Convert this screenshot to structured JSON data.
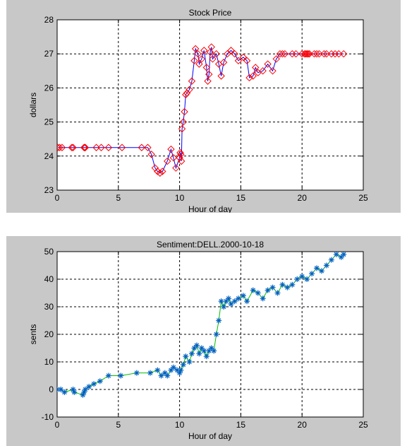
{
  "chart_data": [
    {
      "type": "line",
      "title": "Stock Price",
      "xlabel": "Hour of day",
      "ylabel": "dollars",
      "xlim": [
        0,
        25
      ],
      "ylim": [
        23,
        28
      ],
      "xticks": [
        0,
        5,
        10,
        15,
        20,
        25
      ],
      "yticks": [
        23,
        24,
        25,
        26,
        27,
        28
      ],
      "grid": true,
      "line_color": "#0000ff",
      "marker": "diamond",
      "marker_color": "#ff0000",
      "x": [
        0.05,
        0.2,
        0.4,
        1.2,
        1.3,
        2.2,
        2.25,
        2.3,
        3.2,
        3.6,
        4.2,
        5.3,
        6.9,
        7.4,
        7.7,
        8.0,
        8.2,
        8.4,
        8.6,
        9.0,
        9.3,
        9.5,
        9.7,
        10.0,
        10.05,
        10.1,
        10.15,
        10.2,
        10.3,
        10.4,
        10.5,
        10.6,
        10.8,
        11.0,
        11.2,
        11.3,
        11.5,
        11.6,
        11.8,
        12.0,
        12.2,
        12.3,
        12.4,
        12.5,
        12.6,
        12.7,
        13.0,
        13.2,
        13.4,
        13.6,
        13.9,
        14.2,
        14.5,
        14.8,
        15.2,
        15.5,
        15.7,
        16.0,
        16.2,
        16.4,
        16.8,
        17.2,
        17.6,
        17.9,
        18.2,
        18.4,
        18.6,
        19.2,
        19.5,
        20.0,
        20.2,
        20.3,
        20.4,
        20.5,
        20.6,
        21.0,
        21.2,
        21.4,
        21.8,
        22.0,
        22.4,
        22.7,
        23.0,
        23.4
      ],
      "y": [
        24.25,
        24.25,
        24.25,
        24.25,
        24.25,
        24.25,
        24.25,
        24.25,
        24.25,
        24.25,
        24.25,
        24.25,
        24.25,
        24.25,
        24.05,
        23.65,
        23.55,
        23.5,
        23.55,
        23.85,
        24.2,
        23.95,
        23.65,
        23.95,
        24.1,
        24.05,
        23.85,
        24.8,
        25.0,
        25.3,
        25.8,
        25.85,
        25.95,
        26.2,
        26.8,
        27.15,
        27.0,
        26.7,
        26.85,
        27.1,
        26.6,
        26.2,
        26.4,
        27.05,
        27.2,
        26.85,
        27.0,
        26.7,
        26.35,
        26.75,
        27.0,
        27.1,
        27.0,
        26.8,
        26.9,
        26.8,
        26.3,
        26.35,
        26.6,
        26.45,
        26.5,
        26.7,
        26.5,
        26.85,
        27.0,
        27.0,
        27.0,
        27.0,
        27.0,
        27.0,
        27.0,
        27.0,
        27.0,
        27.0,
        27.0,
        27.0,
        27.0,
        27.0,
        27.0,
        27.0,
        27.0,
        27.0,
        27.0,
        27.0
      ]
    },
    {
      "type": "line",
      "title": "Sentiment:DELL.2000-10-18",
      "xlabel": "Hour of day",
      "ylabel": "sents",
      "xlim": [
        0,
        25
      ],
      "ylim": [
        -10,
        50
      ],
      "xticks": [
        0,
        5,
        10,
        15,
        20,
        25
      ],
      "yticks": [
        -10,
        0,
        10,
        20,
        30,
        40,
        50
      ],
      "grid": true,
      "line_color": "#00c000",
      "marker": "asterisk",
      "marker_color": "#0060c0",
      "x": [
        0.0,
        0.3,
        0.6,
        1.3,
        1.4,
        2.1,
        2.2,
        2.3,
        2.6,
        3.0,
        3.5,
        4.2,
        5.2,
        6.5,
        7.6,
        8.2,
        8.5,
        8.8,
        9.0,
        9.3,
        9.5,
        9.8,
        10.0,
        10.1,
        10.3,
        10.5,
        10.8,
        11.0,
        11.2,
        11.4,
        11.6,
        11.8,
        12.0,
        12.2,
        12.4,
        12.6,
        12.8,
        13.0,
        13.2,
        13.4,
        13.6,
        13.8,
        14.0,
        14.2,
        14.5,
        14.8,
        15.2,
        15.5,
        16.0,
        16.4,
        16.8,
        17.2,
        17.6,
        18.0,
        18.4,
        18.8,
        19.2,
        19.6,
        20.0,
        20.4,
        20.8,
        21.2,
        21.6,
        22.0,
        22.4,
        22.8,
        23.2,
        23.4
      ],
      "y": [
        0,
        0,
        -1,
        0,
        -1,
        -2,
        -1,
        0,
        1,
        2,
        3,
        5,
        5,
        6,
        6,
        7,
        5,
        6,
        5,
        7,
        8,
        7,
        6,
        7,
        9,
        12,
        10,
        13,
        15,
        16,
        13,
        15,
        14,
        12,
        14,
        15,
        14,
        20,
        25,
        32,
        30,
        32,
        33,
        31,
        32,
        33,
        34,
        32,
        36,
        35,
        33,
        36,
        37,
        35,
        38,
        37,
        38,
        40,
        41,
        40,
        42,
        44,
        43,
        45,
        47,
        49,
        48,
        49
      ]
    }
  ]
}
